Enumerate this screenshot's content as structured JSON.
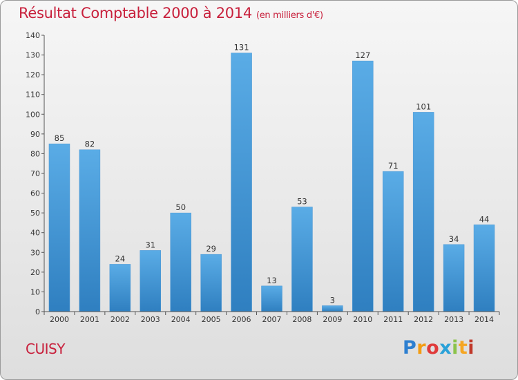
{
  "chart_data": {
    "type": "bar",
    "title": "Résultat Comptable 2000 à 2014",
    "subtitle": "(en milliers d'€)",
    "categories": [
      "2000",
      "2001",
      "2002",
      "2003",
      "2004",
      "2005",
      "2006",
      "2007",
      "2008",
      "2009",
      "2010",
      "2011",
      "2012",
      "2013",
      "2014"
    ],
    "values": [
      85,
      82,
      24,
      31,
      50,
      29,
      131,
      13,
      53,
      3,
      127,
      71,
      101,
      34,
      44
    ],
    "ylim": [
      0,
      140
    ],
    "yticks": [
      0,
      10,
      20,
      30,
      40,
      50,
      60,
      70,
      80,
      90,
      100,
      110,
      120,
      130,
      140
    ],
    "xlabel": "",
    "ylabel": "",
    "grid": false,
    "bar_color_top": "#5aace6",
    "bar_color_bottom": "#2f7fc0"
  },
  "footer": {
    "town": "CUISY",
    "logo_letters": [
      "P",
      "r",
      "o",
      "x",
      "i",
      "t",
      "i"
    ]
  }
}
